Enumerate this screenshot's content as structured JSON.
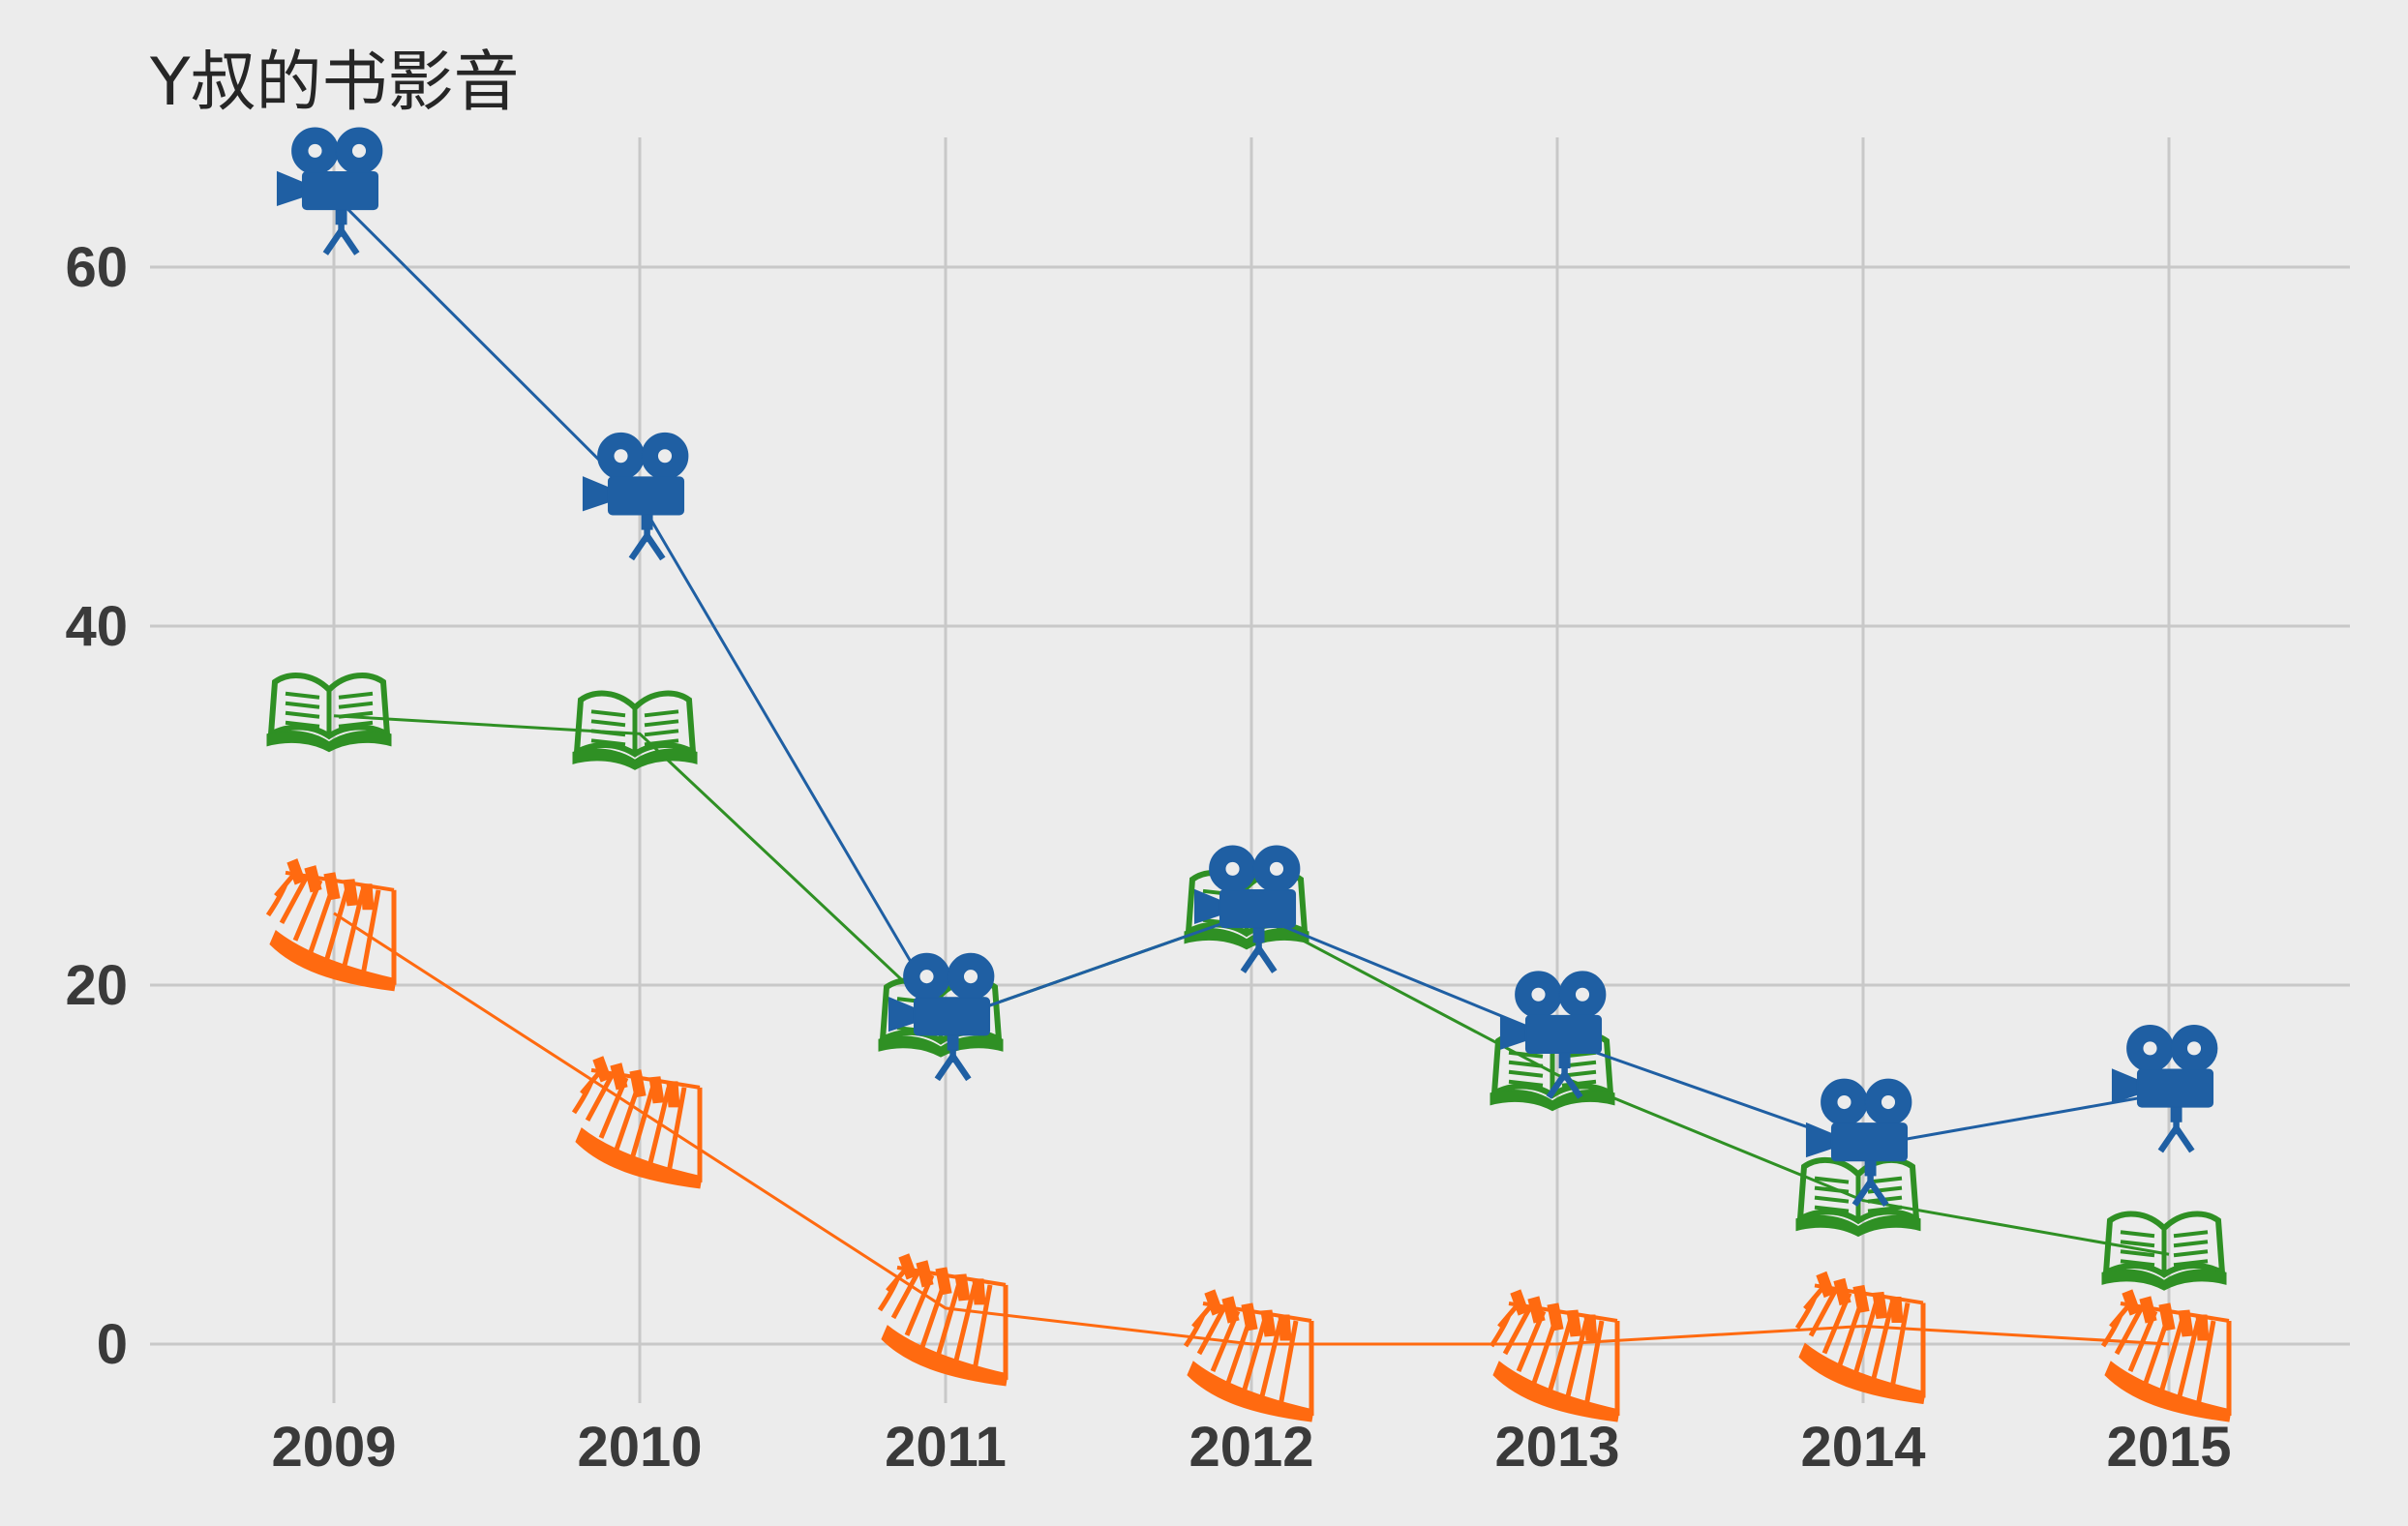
{
  "chart_data": {
    "type": "line",
    "title": "Y叔的书影音",
    "xlabel": "",
    "ylabel": "",
    "categories": [
      "2009",
      "2010",
      "2011",
      "2012",
      "2013",
      "2014",
      "2015"
    ],
    "ylim": [
      -3,
      67
    ],
    "yticks": [
      0,
      20,
      40,
      60
    ],
    "grid": true,
    "series": [
      {
        "icon": "movie-camera-icon",
        "color": "#1f5fa3",
        "values": [
          64,
          47,
          18,
          24,
          17,
          11,
          14
        ]
      },
      {
        "icon": "book-icon",
        "color": "#2f9024",
        "values": [
          35,
          34,
          18,
          24,
          15,
          8,
          5
        ]
      },
      {
        "icon": "piano-icon",
        "color": "#ff6a10",
        "values": [
          24,
          13,
          2,
          0,
          0,
          1,
          0
        ]
      }
    ]
  }
}
